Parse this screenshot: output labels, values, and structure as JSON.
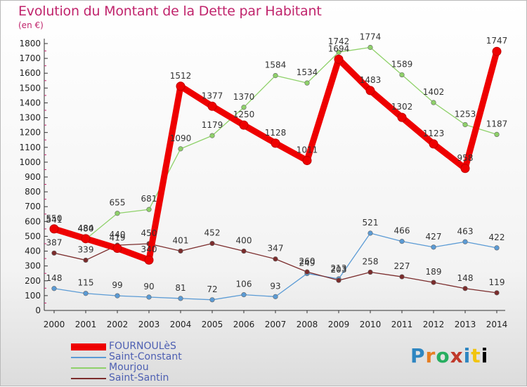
{
  "chart_data": {
    "type": "line",
    "title": "Evolution du Montant de la Dette par Habitant",
    "subtitle": "(en €)",
    "x": [
      "2000",
      "2001",
      "2002",
      "2003",
      "2004",
      "2005",
      "2006",
      "2007",
      "2008",
      "2009",
      "2010",
      "2011",
      "2012",
      "2013",
      "2014"
    ],
    "ylim": [
      0,
      1800
    ],
    "yticks": [
      0,
      100,
      200,
      300,
      400,
      500,
      600,
      700,
      800,
      900,
      1000,
      1100,
      1200,
      1300,
      1400,
      1500,
      1600,
      1700,
      1800
    ],
    "grid": false,
    "legend_position": "bottom-left",
    "series": [
      {
        "name": "FOURNOULèS",
        "color": "#ee0000",
        "values": [
          550,
          484,
          419,
          340,
          1512,
          1377,
          1250,
          1128,
          1011,
          1694,
          1483,
          1302,
          1123,
          958,
          1747
        ]
      },
      {
        "name": "Saint-Constant",
        "color": "#5b9bd5",
        "values": [
          148,
          115,
          99,
          90,
          81,
          72,
          106,
          93,
          249,
          213,
          521,
          466,
          427,
          463,
          422
        ]
      },
      {
        "name": "Mourjou",
        "color": "#8fd16a",
        "values": [
          541,
          480,
          655,
          681,
          1090,
          1179,
          1370,
          1584,
          1534,
          1742,
          1774,
          1589,
          1402,
          1253,
          1187
        ]
      },
      {
        "name": "Saint-Santin",
        "color": "#7b2c2c",
        "values": [
          387,
          339,
          440,
          450,
          401,
          452,
          400,
          347,
          260,
          203,
          258,
          227,
          189,
          148,
          119
        ]
      }
    ]
  },
  "logo": {
    "letters": [
      "P",
      "r",
      "o",
      "x",
      "i",
      "t",
      "i"
    ]
  }
}
